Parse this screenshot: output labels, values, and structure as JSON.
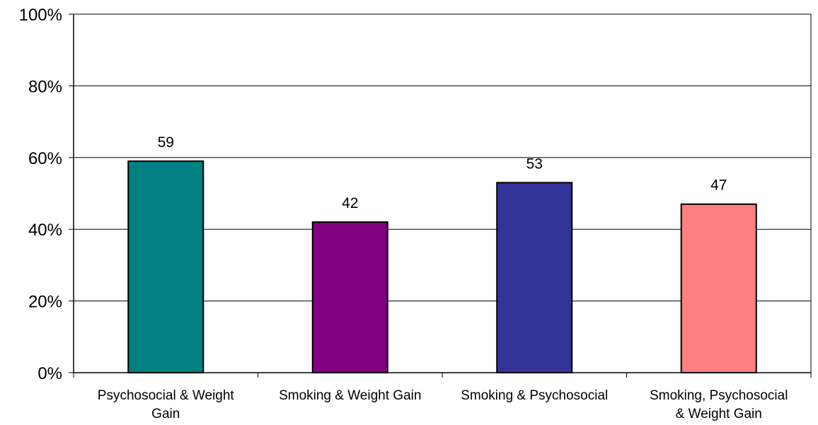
{
  "chart_data": {
    "type": "bar",
    "title": "",
    "xlabel": "",
    "ylabel": "",
    "categories": [
      [
        "Psychosocial & Weight",
        "Gain"
      ],
      [
        "Smoking & Weight Gain"
      ],
      [
        "Smoking & Psychosocial"
      ],
      [
        "Smoking, Psychosocial",
        "& Weight Gain"
      ]
    ],
    "values": [
      59,
      42,
      53,
      47
    ],
    "data_labels": [
      "59",
      "42",
      "53",
      "47"
    ],
    "colors": [
      "#008080",
      "#800080",
      "#333399",
      "#FF8080"
    ],
    "ylim": [
      0,
      100
    ],
    "yticks": [
      0,
      20,
      40,
      60,
      80,
      100
    ],
    "ytick_labels": [
      "0%",
      "20%",
      "40%",
      "60%",
      "80%",
      "100%"
    ],
    "grid": true,
    "legend": "none"
  }
}
